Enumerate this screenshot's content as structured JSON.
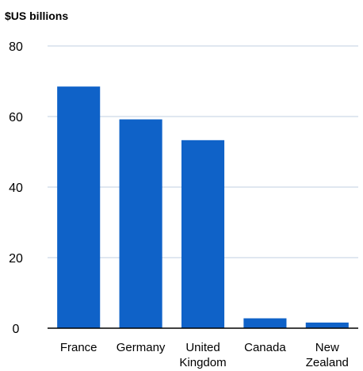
{
  "chart_data": {
    "type": "bar",
    "unit_label": "$US billions",
    "categories": [
      "France",
      "Germany",
      "United Kingdom",
      "Canada",
      "New Zealand"
    ],
    "category_lines": [
      [
        "France"
      ],
      [
        "Germany"
      ],
      [
        "United",
        "Kingdom"
      ],
      [
        "Canada"
      ],
      [
        "New",
        "Zealand"
      ]
    ],
    "values": [
      68.5,
      59.2,
      53.3,
      2.8,
      1.6
    ],
    "ylim": [
      0,
      80
    ],
    "yticks": [
      "0",
      "20",
      "40",
      "60",
      "80"
    ],
    "grid": true,
    "bar_color": "#0f62c8",
    "grid_color": "#c0cfe0"
  }
}
